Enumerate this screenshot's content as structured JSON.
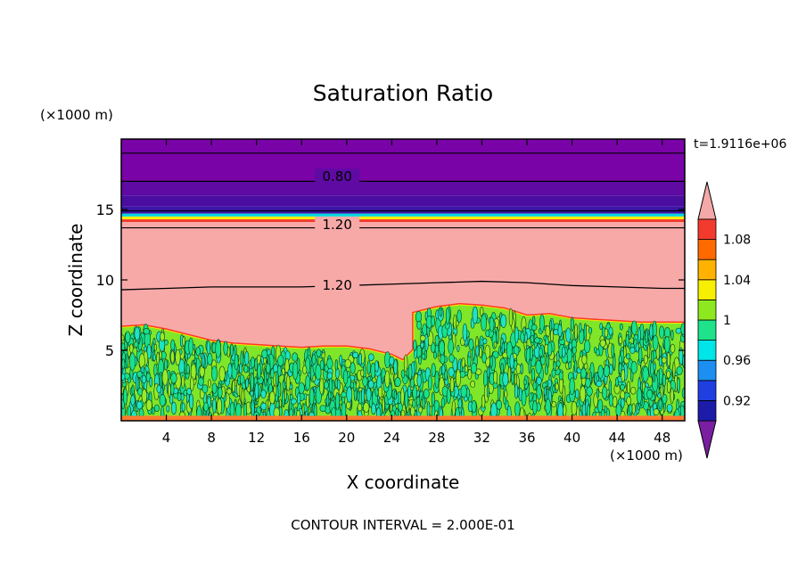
{
  "chart_data": {
    "type": "heatmap",
    "title": "Saturation Ratio",
    "xlabel": "X coordinate",
    "ylabel": "Z coordinate",
    "x_unit": "(×1000 m)",
    "y_unit": "(×1000 m)",
    "time_label": "t=1.9116e+06",
    "footer": "CONTOUR INTERVAL = 2.000E-01",
    "xlim": [
      0,
      50
    ],
    "ylim": [
      0,
      20
    ],
    "x_ticks": [
      "4",
      "8",
      "12",
      "16",
      "20",
      "24",
      "28",
      "32",
      "36",
      "40",
      "44",
      "48"
    ],
    "y_ticks": [
      "5",
      "10",
      "15"
    ],
    "contour_labels": [
      {
        "text": "0.80",
        "x": 17.5,
        "y": 17.2
      },
      {
        "text": "1.20",
        "x": 17.5,
        "y": 13.8
      },
      {
        "text": "1.20",
        "x": 17.5,
        "y": 9.5
      }
    ],
    "colorbar": {
      "labels": [
        "1.08",
        "1.04",
        "1",
        "0.96",
        "0.92"
      ],
      "levels": [
        {
          "value": 0.9,
          "color": "#7a1fa2"
        },
        {
          "value": 0.92,
          "color": "#1c1ca8"
        },
        {
          "value": 0.94,
          "color": "#1f3fe0"
        },
        {
          "value": 0.96,
          "color": "#1e8ff2"
        },
        {
          "value": 0.98,
          "color": "#00e5e8"
        },
        {
          "value": 1.0,
          "color": "#1ee38a"
        },
        {
          "value": 1.02,
          "color": "#8ee81f"
        },
        {
          "value": 1.04,
          "color": "#f7ef00"
        },
        {
          "value": 1.06,
          "color": "#ffb300"
        },
        {
          "value": 1.08,
          "color": "#ff6a00"
        },
        {
          "value": 1.1,
          "color": "#f23b2e"
        },
        {
          "value": 1.12,
          "color": "#f4a8a8"
        }
      ]
    },
    "field_bands": [
      {
        "zmin": 17.0,
        "zmax": 20.0,
        "color": "#7a03a8"
      },
      {
        "zmin": 16.0,
        "zmax": 17.0,
        "color": "#5e0aa3"
      },
      {
        "zmin": 15.2,
        "zmax": 16.0,
        "color": "#4a0da0"
      },
      {
        "zmin": 14.7,
        "zmax": 15.2,
        "color": "#3b15a5"
      },
      {
        "zmin": 14.5,
        "zmax": 14.7,
        "color": "#00d8e0"
      },
      {
        "zmin": 14.3,
        "zmax": 14.5,
        "color": "#f7ef00"
      },
      {
        "zmin": 14.1,
        "zmax": 14.3,
        "color": "#f23b2e"
      },
      {
        "zmin": 0.0,
        "zmax": 14.1,
        "color": "#f7a9a8"
      }
    ],
    "cloud_top": [
      {
        "x": 0,
        "z": 6.6
      },
      {
        "x": 2,
        "z": 6.7
      },
      {
        "x": 4,
        "z": 6.4
      },
      {
        "x": 6,
        "z": 6.0
      },
      {
        "x": 8,
        "z": 5.6
      },
      {
        "x": 10,
        "z": 5.4
      },
      {
        "x": 12,
        "z": 5.3
      },
      {
        "x": 14,
        "z": 5.2
      },
      {
        "x": 16,
        "z": 5.1
      },
      {
        "x": 18,
        "z": 5.2
      },
      {
        "x": 20,
        "z": 5.2
      },
      {
        "x": 22,
        "z": 5.0
      },
      {
        "x": 24,
        "z": 4.6
      },
      {
        "x": 25,
        "z": 4.2
      },
      {
        "x": 26,
        "z": 5.0
      },
      {
        "x": 26,
        "z": 7.6
      },
      {
        "x": 28,
        "z": 8.0
      },
      {
        "x": 30,
        "z": 8.2
      },
      {
        "x": 32,
        "z": 8.1
      },
      {
        "x": 34,
        "z": 7.9
      },
      {
        "x": 36,
        "z": 7.4
      },
      {
        "x": 38,
        "z": 7.5
      },
      {
        "x": 40,
        "z": 7.2
      },
      {
        "x": 42,
        "z": 7.1
      },
      {
        "x": 44,
        "z": 7.0
      },
      {
        "x": 46,
        "z": 6.9
      },
      {
        "x": 48,
        "z": 6.9
      },
      {
        "x": 50,
        "z": 6.9
      }
    ],
    "contour_12_line": [
      {
        "x": 0,
        "z": 9.3
      },
      {
        "x": 4,
        "z": 9.4
      },
      {
        "x": 8,
        "z": 9.5
      },
      {
        "x": 12,
        "z": 9.5
      },
      {
        "x": 16,
        "z": 9.5
      },
      {
        "x": 20,
        "z": 9.6
      },
      {
        "x": 24,
        "z": 9.7
      },
      {
        "x": 28,
        "z": 9.8
      },
      {
        "x": 32,
        "z": 9.9
      },
      {
        "x": 36,
        "z": 9.8
      },
      {
        "x": 40,
        "z": 9.6
      },
      {
        "x": 44,
        "z": 9.5
      },
      {
        "x": 48,
        "z": 9.4
      },
      {
        "x": 50,
        "z": 9.4
      }
    ],
    "contour_lines_flat": [
      19.0,
      17.0,
      14.9,
      13.7
    ]
  }
}
